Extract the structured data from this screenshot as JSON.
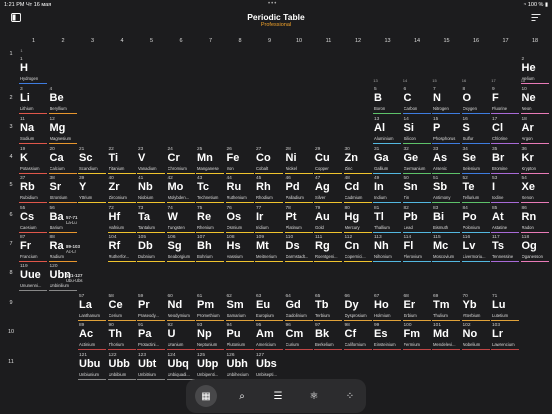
{
  "status": {
    "time": "1:21 PM",
    "date": "Чт 16 мая",
    "battery": "100 %"
  },
  "header": {
    "title": "Periodic Table",
    "subtitle": "Professional"
  },
  "groups": [
    "1",
    "2",
    "3",
    "4",
    "5",
    "6",
    "7",
    "8",
    "9",
    "10",
    "11",
    "12",
    "13",
    "14",
    "15",
    "16",
    "17",
    "18"
  ],
  "group_sub": [
    "1",
    "",
    "",
    "",
    "",
    "",
    "",
    "",
    "",
    "",
    "",
    "",
    "13",
    "14",
    "15",
    "16",
    "17",
    "18"
  ],
  "periods": [
    "1",
    "2",
    "3",
    "4",
    "5",
    "6",
    "7",
    "8",
    "9",
    "10",
    "11"
  ],
  "colors": {
    "alkali": "#e0574a",
    "alkaline": "#e8962e",
    "transition": "#f0c42e",
    "post": "#53b8e0",
    "metalloid": "#5dc26a",
    "nonmetal": "#3e7ce0",
    "halogen": "#a96ad8",
    "noble": "#e87ab8",
    "lanth": "#e0a23a",
    "act": "#c04545",
    "unknown": "#888888",
    "hydrogen": "#3e7ce0"
  },
  "elements": [
    {
      "n": "1",
      "s": "H",
      "name": "Hydrogen",
      "g": 1,
      "p": 1,
      "c": "hydrogen"
    },
    {
      "n": "2",
      "s": "He",
      "name": "Helium",
      "g": 18,
      "p": 1,
      "c": "noble"
    },
    {
      "n": "3",
      "s": "Li",
      "name": "Lithium",
      "g": 1,
      "p": 2,
      "c": "alkali"
    },
    {
      "n": "4",
      "s": "Be",
      "name": "Beryllium",
      "g": 2,
      "p": 2,
      "c": "alkaline"
    },
    {
      "n": "5",
      "s": "B",
      "name": "Boron",
      "g": 13,
      "p": 2,
      "c": "metalloid"
    },
    {
      "n": "6",
      "s": "C",
      "name": "Carbon",
      "g": 14,
      "p": 2,
      "c": "nonmetal"
    },
    {
      "n": "7",
      "s": "N",
      "name": "Nitrogen",
      "g": 15,
      "p": 2,
      "c": "nonmetal"
    },
    {
      "n": "8",
      "s": "O",
      "name": "Oxygen",
      "g": 16,
      "p": 2,
      "c": "nonmetal"
    },
    {
      "n": "9",
      "s": "F",
      "name": "Fluorine",
      "g": 17,
      "p": 2,
      "c": "halogen"
    },
    {
      "n": "10",
      "s": "Ne",
      "name": "Neon",
      "g": 18,
      "p": 2,
      "c": "noble"
    },
    {
      "n": "11",
      "s": "Na",
      "name": "Sodium",
      "g": 1,
      "p": 3,
      "c": "alkali"
    },
    {
      "n": "12",
      "s": "Mg",
      "name": "Magnesium",
      "g": 2,
      "p": 3,
      "c": "alkaline"
    },
    {
      "n": "13",
      "s": "Al",
      "name": "Aluminium",
      "g": 13,
      "p": 3,
      "c": "post"
    },
    {
      "n": "14",
      "s": "Si",
      "name": "Silicon",
      "g": 14,
      "p": 3,
      "c": "metalloid"
    },
    {
      "n": "15",
      "s": "P",
      "name": "Phosphorus",
      "g": 15,
      "p": 3,
      "c": "nonmetal"
    },
    {
      "n": "16",
      "s": "S",
      "name": "Sulfur",
      "g": 16,
      "p": 3,
      "c": "nonmetal"
    },
    {
      "n": "17",
      "s": "Cl",
      "name": "Chlorine",
      "g": 17,
      "p": 3,
      "c": "halogen"
    },
    {
      "n": "18",
      "s": "Ar",
      "name": "Argon",
      "g": 18,
      "p": 3,
      "c": "noble"
    },
    {
      "n": "19",
      "s": "K",
      "name": "Potassium",
      "g": 1,
      "p": 4,
      "c": "alkali"
    },
    {
      "n": "20",
      "s": "Ca",
      "name": "Calcium",
      "g": 2,
      "p": 4,
      "c": "alkaline"
    },
    {
      "n": "21",
      "s": "Sc",
      "name": "Scandium",
      "g": 3,
      "p": 4,
      "c": "transition"
    },
    {
      "n": "22",
      "s": "Ti",
      "name": "Titanium",
      "g": 4,
      "p": 4,
      "c": "transition"
    },
    {
      "n": "23",
      "s": "V",
      "name": "Vanadium",
      "g": 5,
      "p": 4,
      "c": "transition"
    },
    {
      "n": "24",
      "s": "Cr",
      "name": "Chromium",
      "g": 6,
      "p": 4,
      "c": "transition"
    },
    {
      "n": "25",
      "s": "Mn",
      "name": "Manganese",
      "g": 7,
      "p": 4,
      "c": "transition"
    },
    {
      "n": "26",
      "s": "Fe",
      "name": "Iron",
      "g": 8,
      "p": 4,
      "c": "transition"
    },
    {
      "n": "27",
      "s": "Co",
      "name": "Cobalt",
      "g": 9,
      "p": 4,
      "c": "transition"
    },
    {
      "n": "28",
      "s": "Ni",
      "name": "Nickel",
      "g": 10,
      "p": 4,
      "c": "transition"
    },
    {
      "n": "29",
      "s": "Cu",
      "name": "Copper",
      "g": 11,
      "p": 4,
      "c": "transition"
    },
    {
      "n": "30",
      "s": "Zn",
      "name": "Zinc",
      "g": 12,
      "p": 4,
      "c": "transition"
    },
    {
      "n": "31",
      "s": "Ga",
      "name": "Gallium",
      "g": 13,
      "p": 4,
      "c": "post"
    },
    {
      "n": "32",
      "s": "Ge",
      "name": "Germanium",
      "g": 14,
      "p": 4,
      "c": "metalloid"
    },
    {
      "n": "33",
      "s": "As",
      "name": "Arsenic",
      "g": 15,
      "p": 4,
      "c": "metalloid"
    },
    {
      "n": "34",
      "s": "Se",
      "name": "Selenium",
      "g": 16,
      "p": 4,
      "c": "nonmetal"
    },
    {
      "n": "35",
      "s": "Br",
      "name": "Bromine",
      "g": 17,
      "p": 4,
      "c": "halogen"
    },
    {
      "n": "36",
      "s": "Kr",
      "name": "Krypton",
      "g": 18,
      "p": 4,
      "c": "noble"
    },
    {
      "n": "37",
      "s": "Rb",
      "name": "Rubidium",
      "g": 1,
      "p": 5,
      "c": "alkali"
    },
    {
      "n": "38",
      "s": "Sr",
      "name": "Strontium",
      "g": 2,
      "p": 5,
      "c": "alkaline"
    },
    {
      "n": "39",
      "s": "Y",
      "name": "Yttrium",
      "g": 3,
      "p": 5,
      "c": "transition"
    },
    {
      "n": "40",
      "s": "Zr",
      "name": "Zirconium",
      "g": 4,
      "p": 5,
      "c": "transition"
    },
    {
      "n": "41",
      "s": "Nb",
      "name": "Niobium",
      "g": 5,
      "p": 5,
      "c": "transition"
    },
    {
      "n": "42",
      "s": "Mo",
      "name": "Molybden...",
      "g": 6,
      "p": 5,
      "c": "transition"
    },
    {
      "n": "43",
      "s": "Tc",
      "name": "Technetium",
      "g": 7,
      "p": 5,
      "c": "transition"
    },
    {
      "n": "44",
      "s": "Ru",
      "name": "Ruthenium",
      "g": 8,
      "p": 5,
      "c": "transition"
    },
    {
      "n": "45",
      "s": "Rh",
      "name": "Rhodium",
      "g": 9,
      "p": 5,
      "c": "transition"
    },
    {
      "n": "46",
      "s": "Pd",
      "name": "Palladium",
      "g": 10,
      "p": 5,
      "c": "transition"
    },
    {
      "n": "47",
      "s": "Ag",
      "name": "Silver",
      "g": 11,
      "p": 5,
      "c": "transition"
    },
    {
      "n": "48",
      "s": "Cd",
      "name": "Cadmium",
      "g": 12,
      "p": 5,
      "c": "transition"
    },
    {
      "n": "49",
      "s": "In",
      "name": "Indium",
      "g": 13,
      "p": 5,
      "c": "post"
    },
    {
      "n": "50",
      "s": "Sn",
      "name": "Tin",
      "g": 14,
      "p": 5,
      "c": "post"
    },
    {
      "n": "51",
      "s": "Sb",
      "name": "Antimony",
      "g": 15,
      "p": 5,
      "c": "metalloid"
    },
    {
      "n": "52",
      "s": "Te",
      "name": "Tellurium",
      "g": 16,
      "p": 5,
      "c": "metalloid"
    },
    {
      "n": "53",
      "s": "I",
      "name": "Iodine",
      "g": 17,
      "p": 5,
      "c": "halogen"
    },
    {
      "n": "54",
      "s": "Xe",
      "name": "Xenon",
      "g": 18,
      "p": 5,
      "c": "noble"
    },
    {
      "n": "55",
      "s": "Cs",
      "name": "Caesium",
      "g": 1,
      "p": 6,
      "c": "alkali"
    },
    {
      "n": "56",
      "s": "Ba",
      "name": "Barium",
      "g": 2,
      "p": 6,
      "c": "alkaline"
    },
    {
      "n": "72",
      "s": "Hf",
      "name": "Hafnium",
      "g": 4,
      "p": 6,
      "c": "transition"
    },
    {
      "n": "73",
      "s": "Ta",
      "name": "Tantalum",
      "g": 5,
      "p": 6,
      "c": "transition"
    },
    {
      "n": "74",
      "s": "W",
      "name": "Tungsten",
      "g": 6,
      "p": 6,
      "c": "transition"
    },
    {
      "n": "75",
      "s": "Re",
      "name": "Rhenium",
      "g": 7,
      "p": 6,
      "c": "transition"
    },
    {
      "n": "76",
      "s": "Os",
      "name": "Osmium",
      "g": 8,
      "p": 6,
      "c": "transition"
    },
    {
      "n": "77",
      "s": "Ir",
      "name": "Iridium",
      "g": 9,
      "p": 6,
      "c": "transition"
    },
    {
      "n": "78",
      "s": "Pt",
      "name": "Platinum",
      "g": 10,
      "p": 6,
      "c": "transition"
    },
    {
      "n": "79",
      "s": "Au",
      "name": "Gold",
      "g": 11,
      "p": 6,
      "c": "transition"
    },
    {
      "n": "80",
      "s": "Hg",
      "name": "Mercury",
      "g": 12,
      "p": 6,
      "c": "transition"
    },
    {
      "n": "81",
      "s": "Tl",
      "name": "Thallium",
      "g": 13,
      "p": 6,
      "c": "post"
    },
    {
      "n": "82",
      "s": "Pb",
      "name": "Lead",
      "g": 14,
      "p": 6,
      "c": "post"
    },
    {
      "n": "83",
      "s": "Bi",
      "name": "Bismuth",
      "g": 15,
      "p": 6,
      "c": "post"
    },
    {
      "n": "84",
      "s": "Po",
      "name": "Polonium",
      "g": 16,
      "p": 6,
      "c": "post"
    },
    {
      "n": "85",
      "s": "At",
      "name": "Astatine",
      "g": 17,
      "p": 6,
      "c": "halogen"
    },
    {
      "n": "86",
      "s": "Rn",
      "name": "Radon",
      "g": 18,
      "p": 6,
      "c": "noble"
    },
    {
      "n": "87",
      "s": "Fr",
      "name": "Francium",
      "g": 1,
      "p": 7,
      "c": "alkali"
    },
    {
      "n": "88",
      "s": "Ra",
      "name": "Radium",
      "g": 2,
      "p": 7,
      "c": "alkaline"
    },
    {
      "n": "104",
      "s": "Rf",
      "name": "Rutherfor...",
      "g": 4,
      "p": 7,
      "c": "transition"
    },
    {
      "n": "105",
      "s": "Db",
      "name": "Dubnium",
      "g": 5,
      "p": 7,
      "c": "transition"
    },
    {
      "n": "106",
      "s": "Sg",
      "name": "Seaborgium",
      "g": 6,
      "p": 7,
      "c": "transition"
    },
    {
      "n": "107",
      "s": "Bh",
      "name": "Bohrium",
      "g": 7,
      "p": 7,
      "c": "transition"
    },
    {
      "n": "108",
      "s": "Hs",
      "name": "Hassium",
      "g": 8,
      "p": 7,
      "c": "transition"
    },
    {
      "n": "109",
      "s": "Mt",
      "name": "Meitnerium",
      "g": 9,
      "p": 7,
      "c": "transition"
    },
    {
      "n": "110",
      "s": "Ds",
      "name": "Darmstadt...",
      "g": 10,
      "p": 7,
      "c": "transition"
    },
    {
      "n": "111",
      "s": "Rg",
      "name": "Roentgeni...",
      "g": 11,
      "p": 7,
      "c": "transition"
    },
    {
      "n": "112",
      "s": "Cn",
      "name": "Copernici...",
      "g": 12,
      "p": 7,
      "c": "transition"
    },
    {
      "n": "113",
      "s": "Nh",
      "name": "Nihonium",
      "g": 13,
      "p": 7,
      "c": "post"
    },
    {
      "n": "114",
      "s": "Fl",
      "name": "Flerovium",
      "g": 14,
      "p": 7,
      "c": "post"
    },
    {
      "n": "115",
      "s": "Mc",
      "name": "Moscovium",
      "g": 15,
      "p": 7,
      "c": "post"
    },
    {
      "n": "116",
      "s": "Lv",
      "name": "Livermoriu...",
      "g": 16,
      "p": 7,
      "c": "post"
    },
    {
      "n": "117",
      "s": "Ts",
      "name": "Tennessine",
      "g": 17,
      "p": 7,
      "c": "halogen"
    },
    {
      "n": "118",
      "s": "Og",
      "name": "Oganesson",
      "g": 18,
      "p": 7,
      "c": "noble"
    },
    {
      "n": "119",
      "s": "Uue",
      "name": "Ununenni...",
      "g": 1,
      "p": 8,
      "c": "unknown"
    },
    {
      "n": "120",
      "s": "Ubn",
      "name": "Unbinilium",
      "g": 2,
      "p": 8,
      "c": "unknown"
    },
    {
      "n": "57",
      "s": "La",
      "name": "Lanthanum",
      "g": 3,
      "p": 9,
      "c": "lanth"
    },
    {
      "n": "58",
      "s": "Ce",
      "name": "Cerium",
      "g": 4,
      "p": 9,
      "c": "lanth"
    },
    {
      "n": "59",
      "s": "Pr",
      "name": "Praseody...",
      "g": 5,
      "p": 9,
      "c": "lanth"
    },
    {
      "n": "60",
      "s": "Nd",
      "name": "Neodymium",
      "g": 6,
      "p": 9,
      "c": "lanth"
    },
    {
      "n": "61",
      "s": "Pm",
      "name": "Promethium",
      "g": 7,
      "p": 9,
      "c": "lanth"
    },
    {
      "n": "62",
      "s": "Sm",
      "name": "Samarium",
      "g": 8,
      "p": 9,
      "c": "lanth"
    },
    {
      "n": "63",
      "s": "Eu",
      "name": "Europium",
      "g": 9,
      "p": 9,
      "c": "lanth"
    },
    {
      "n": "64",
      "s": "Gd",
      "name": "Gadolinium",
      "g": 10,
      "p": 9,
      "c": "lanth"
    },
    {
      "n": "65",
      "s": "Tb",
      "name": "Terbium",
      "g": 11,
      "p": 9,
      "c": "lanth"
    },
    {
      "n": "66",
      "s": "Dy",
      "name": "Dysprosium",
      "g": 12,
      "p": 9,
      "c": "lanth"
    },
    {
      "n": "67",
      "s": "Ho",
      "name": "Holmium",
      "g": 13,
      "p": 9,
      "c": "lanth"
    },
    {
      "n": "68",
      "s": "Er",
      "name": "Erbium",
      "g": 14,
      "p": 9,
      "c": "lanth"
    },
    {
      "n": "69",
      "s": "Tm",
      "name": "Thulium",
      "g": 15,
      "p": 9,
      "c": "lanth"
    },
    {
      "n": "70",
      "s": "Yb",
      "name": "Ytterbium",
      "g": 16,
      "p": 9,
      "c": "lanth"
    },
    {
      "n": "71",
      "s": "Lu",
      "name": "Lutetium",
      "g": 17,
      "p": 9,
      "c": "lanth"
    },
    {
      "n": "89",
      "s": "Ac",
      "name": "Actinium",
      "g": 3,
      "p": 10,
      "c": "act"
    },
    {
      "n": "90",
      "s": "Th",
      "name": "Thorium",
      "g": 4,
      "p": 10,
      "c": "act"
    },
    {
      "n": "91",
      "s": "Pa",
      "name": "Protactini...",
      "g": 5,
      "p": 10,
      "c": "act"
    },
    {
      "n": "92",
      "s": "U",
      "name": "Uranium",
      "g": 6,
      "p": 10,
      "c": "act"
    },
    {
      "n": "93",
      "s": "Np",
      "name": "Neptunium",
      "g": 7,
      "p": 10,
      "c": "act"
    },
    {
      "n": "94",
      "s": "Pu",
      "name": "Plutonium",
      "g": 8,
      "p": 10,
      "c": "act"
    },
    {
      "n": "95",
      "s": "Am",
      "name": "Americium",
      "g": 9,
      "p": 10,
      "c": "act"
    },
    {
      "n": "96",
      "s": "Cm",
      "name": "Curium",
      "g": 10,
      "p": 10,
      "c": "act"
    },
    {
      "n": "97",
      "s": "Bk",
      "name": "Berkelium",
      "g": 11,
      "p": 10,
      "c": "act"
    },
    {
      "n": "98",
      "s": "Cf",
      "name": "Californium",
      "g": 12,
      "p": 10,
      "c": "act"
    },
    {
      "n": "99",
      "s": "Es",
      "name": "Einsteinium",
      "g": 13,
      "p": 10,
      "c": "act"
    },
    {
      "n": "100",
      "s": "Fm",
      "name": "Fermium",
      "g": 14,
      "p": 10,
      "c": "act"
    },
    {
      "n": "101",
      "s": "Md",
      "name": "Mendelevi...",
      "g": 15,
      "p": 10,
      "c": "act"
    },
    {
      "n": "102",
      "s": "No",
      "name": "Nobelium",
      "g": 16,
      "p": 10,
      "c": "act"
    },
    {
      "n": "103",
      "s": "Lr",
      "name": "Lawrencium",
      "g": 17,
      "p": 10,
      "c": "act"
    },
    {
      "n": "121",
      "s": "Ubu",
      "name": "Unbiunium",
      "g": 3,
      "p": 11,
      "c": "unknown"
    },
    {
      "n": "122",
      "s": "Ubb",
      "name": "Unbibium",
      "g": 4,
      "p": 11,
      "c": "unknown"
    },
    {
      "n": "123",
      "s": "Ubt",
      "name": "Unbitrium",
      "g": 5,
      "p": 11,
      "c": "unknown"
    },
    {
      "n": "124",
      "s": "Ubq",
      "name": "Unbiquadi...",
      "g": 6,
      "p": 11,
      "c": "unknown"
    },
    {
      "n": "125",
      "s": "Ubp",
      "name": "Unbipenti...",
      "g": 7,
      "p": 11,
      "c": "unknown"
    },
    {
      "n": "126",
      "s": "Ubh",
      "name": "Unbihexium",
      "g": 8,
      "p": 11,
      "c": "unknown"
    },
    {
      "n": "127",
      "s": "Ubs",
      "name": "Unbisepti...",
      "g": 9,
      "p": 11,
      "c": "unknown"
    }
  ],
  "refs": [
    {
      "r1": "57-71",
      "r2": "La-Lu",
      "p": 6
    },
    {
      "r1": "89-103",
      "r2": "Ac-Lr",
      "p": 7
    },
    {
      "r1": "121-127",
      "r2": "Ubu-Ubs",
      "p": 8
    }
  ],
  "tabs": [
    {
      "icon": "table-icon",
      "glyph": "▦",
      "selected": true
    },
    {
      "icon": "search-icon",
      "glyph": "⌕",
      "selected": false
    },
    {
      "icon": "list-icon",
      "glyph": "☰",
      "selected": false
    },
    {
      "icon": "atom-icon",
      "glyph": "⚛",
      "selected": false
    },
    {
      "icon": "grid-dots-icon",
      "glyph": "⁘",
      "selected": false
    }
  ]
}
